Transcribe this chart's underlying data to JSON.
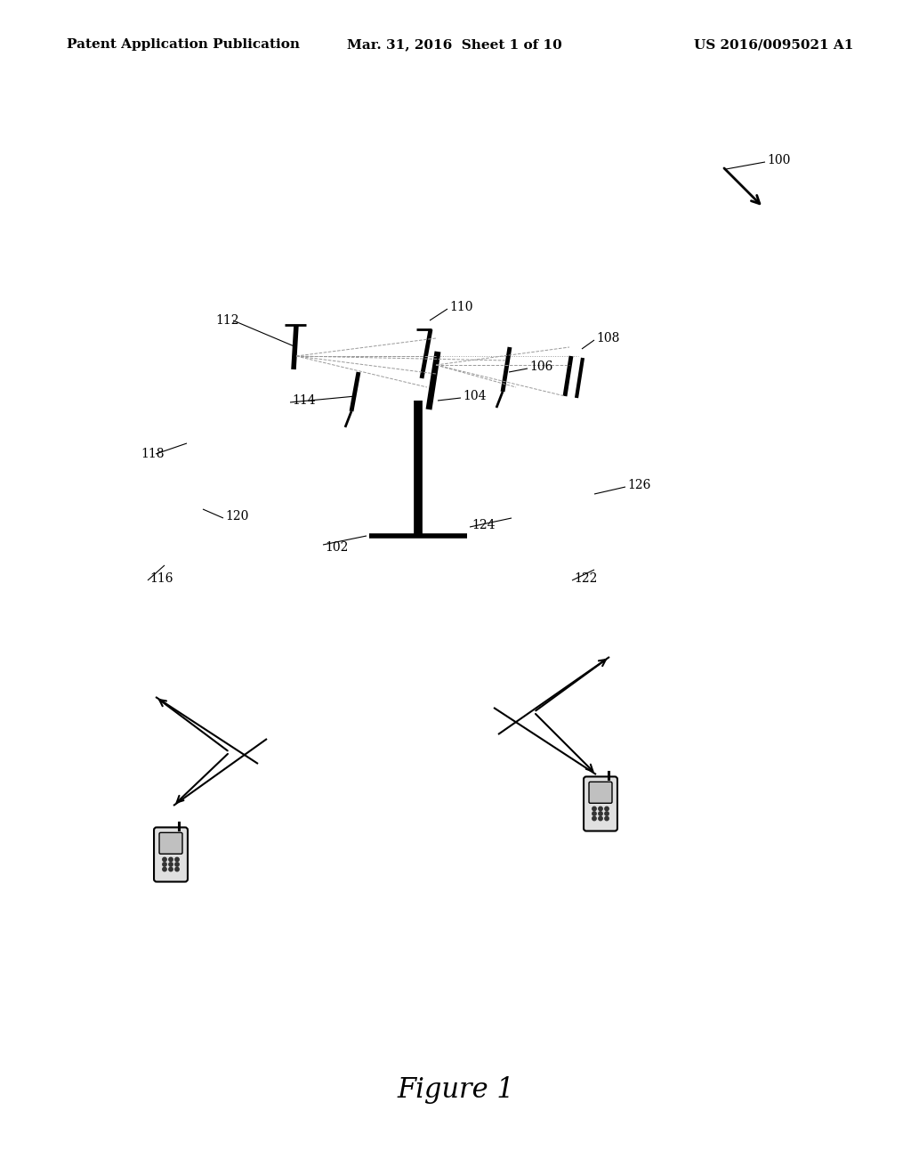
{
  "header_left": "Patent Application Publication",
  "header_center": "Mar. 31, 2016  Sheet 1 of 10",
  "header_right": "US 2016/0095021 A1",
  "figure_label": "Figure 1",
  "bg_color": "#ffffff",
  "beam_color": "#aaaaaa",
  "line_color": "#000000"
}
